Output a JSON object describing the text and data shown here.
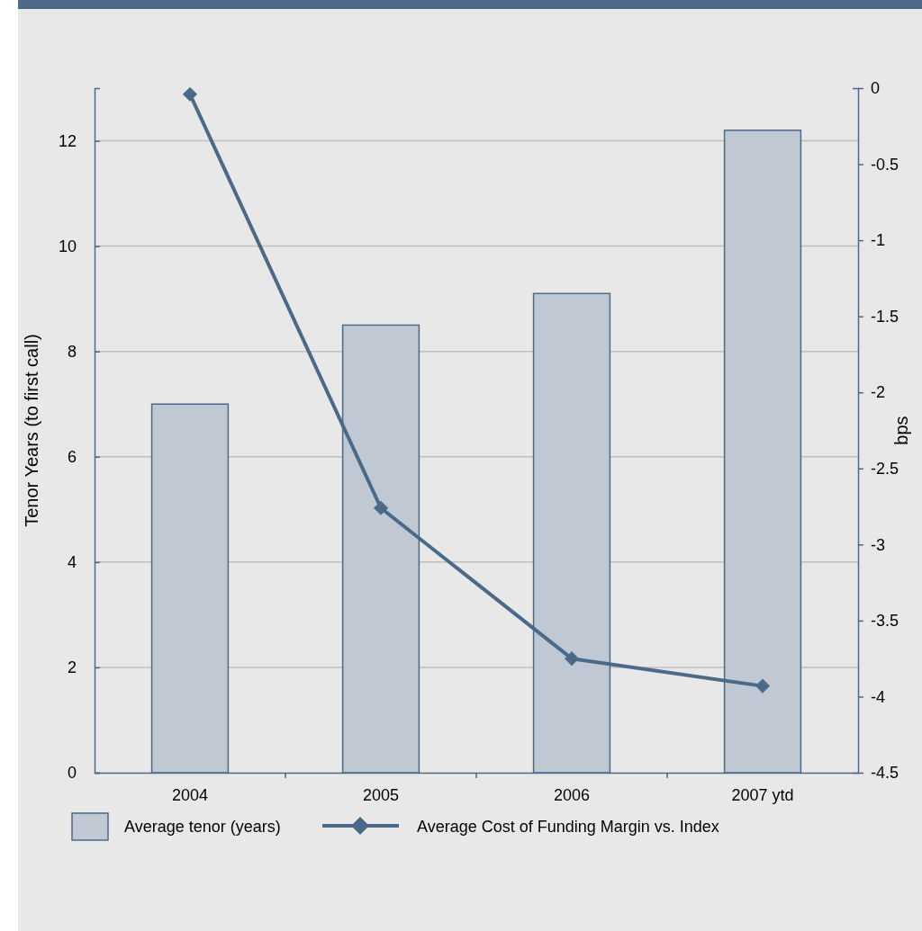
{
  "chart_data": {
    "type": "bar",
    "ylabel": "Tenor Years (to first call)",
    "y2label": "bps",
    "categories": [
      "2004",
      "2005",
      "2006",
      "2007 ytd"
    ],
    "series": [
      {
        "name": "Average tenor (years)",
        "color": "#c0c9d3",
        "values": [
          7.0,
          8.5,
          9.1,
          12.2
        ]
      },
      {
        "name": "Average Cost of Funding Margin vs. Index",
        "type": "line",
        "axis": "y2",
        "color": "#4a6a88",
        "marker": "diamond",
        "values": [
          -0.04,
          -2.76,
          -3.75,
          -3.93
        ]
      }
    ],
    "ylim": [
      0,
      13
    ],
    "yticks": [
      0,
      2,
      4,
      6,
      8,
      10,
      12
    ],
    "y2lim": [
      -4.5,
      0
    ],
    "y2ticks": [
      -4.5,
      -4,
      -3.5,
      -3,
      -2.5,
      -2,
      -1.5,
      -1,
      -0.5,
      0
    ],
    "grid": "y",
    "legend": "bottom"
  }
}
